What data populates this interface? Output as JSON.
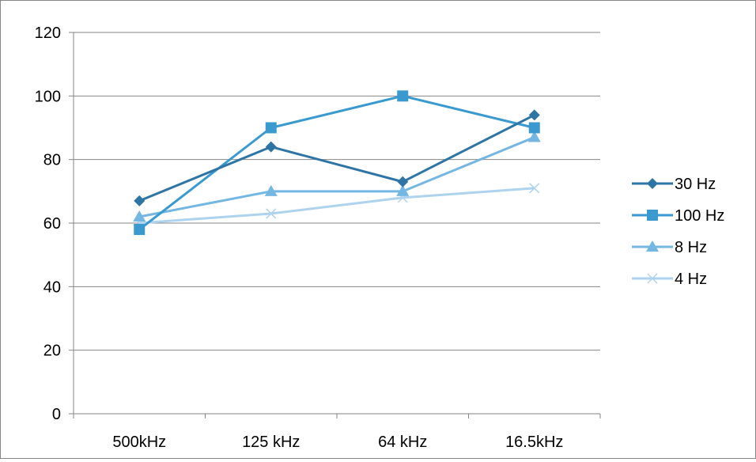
{
  "chart_data": {
    "type": "line",
    "title": "",
    "xlabel": "",
    "ylabel": "",
    "categories": [
      "500kHz",
      "125 kHz",
      "64 kHz",
      "16.5kHz"
    ],
    "ylim": [
      0,
      120
    ],
    "yticks": [
      0,
      20,
      40,
      60,
      80,
      100,
      120
    ],
    "grid": "horizontal",
    "legend": "right",
    "series": [
      {
        "name": "30 Hz",
        "values": [
          67,
          84,
          73,
          94
        ],
        "color": "#2E75A6",
        "marker": "diamond"
      },
      {
        "name": "100 Hz",
        "values": [
          58,
          90,
          100,
          90
        ],
        "color": "#3A9AD0",
        "marker": "square"
      },
      {
        "name": "8 Hz",
        "values": [
          62,
          70,
          70,
          87
        ],
        "color": "#74B7E2",
        "marker": "triangle"
      },
      {
        "name": "4 Hz",
        "values": [
          60,
          63,
          68,
          71
        ],
        "color": "#AED3EE",
        "marker": "x"
      }
    ]
  }
}
